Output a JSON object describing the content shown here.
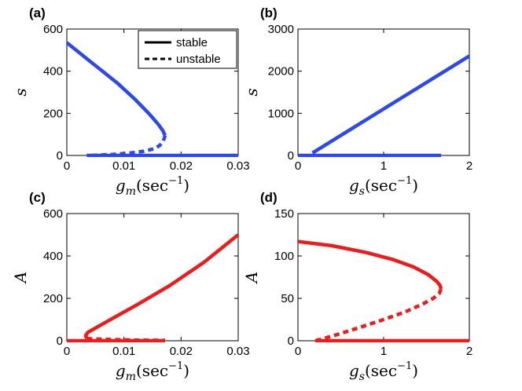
{
  "colors": {
    "blue": "#2e49ea",
    "red": "#ed1c1c"
  },
  "legend": {
    "stable": "stable",
    "unstable": "unstable"
  },
  "chart_data": [
    {
      "panel": "(a)",
      "type": "line",
      "xlabel": {
        "var": "g",
        "sub": "m",
        "unit": "(sec",
        "exp": "−1",
        "close": ")"
      },
      "ylabel": "s",
      "xlim": [
        0,
        0.03
      ],
      "ylim": [
        0,
        600
      ],
      "xticks": [
        0,
        0.01,
        0.02,
        0.03
      ],
      "xtick_labels": [
        "0",
        "0.01",
        "0.02",
        "0.03"
      ],
      "yticks": [
        0,
        200,
        400,
        600
      ],
      "ytick_labels": [
        "0",
        "200",
        "400",
        "600"
      ],
      "grid": false,
      "legend_position": "top-right",
      "series": [
        {
          "style": "stable",
          "color": "blue",
          "x": [
            0,
            0.003,
            0.006,
            0.009,
            0.012,
            0.0145,
            0.016,
            0.0168,
            0.0172
          ],
          "y": [
            535,
            470,
            405,
            340,
            265,
            195,
            148,
            118,
            95
          ]
        },
        {
          "style": "unstable",
          "color": "blue",
          "x": [
            0.0172,
            0.0169,
            0.0163,
            0.0153,
            0.0135,
            0.011,
            0.008,
            0.005,
            0.0035
          ],
          "y": [
            95,
            68,
            48,
            32,
            20,
            11,
            5,
            1,
            0
          ]
        },
        {
          "style": "stable",
          "color": "blue",
          "x": [
            0.0035,
            0.03
          ],
          "y": [
            0,
            0
          ]
        }
      ]
    },
    {
      "panel": "(b)",
      "type": "line",
      "xlabel": {
        "var": "g",
        "sub": "s",
        "unit": "(sec",
        "exp": "−1",
        "close": ")"
      },
      "ylabel": "s",
      "xlim": [
        0,
        2
      ],
      "ylim": [
        0,
        3000
      ],
      "xticks": [
        0,
        1,
        2
      ],
      "xtick_labels": [
        "0",
        "1",
        "2"
      ],
      "yticks": [
        0,
        1000,
        2000,
        3000
      ],
      "ytick_labels": [
        "0",
        "1000",
        "2000",
        "3000"
      ],
      "grid": false,
      "series": [
        {
          "style": "stable",
          "color": "blue",
          "x": [
            0,
            1.67
          ],
          "y": [
            0,
            0
          ]
        },
        {
          "style": "stable",
          "color": "blue",
          "x": [
            0.17,
            2.0
          ],
          "y": [
            60,
            2360
          ]
        }
      ]
    },
    {
      "panel": "(c)",
      "type": "line",
      "xlabel": {
        "var": "g",
        "sub": "m",
        "unit": "(sec",
        "exp": "−1",
        "close": ")"
      },
      "ylabel": "A",
      "xlim": [
        0,
        0.03
      ],
      "ylim": [
        0,
        600
      ],
      "xticks": [
        0,
        0.01,
        0.02,
        0.03
      ],
      "xtick_labels": [
        "0",
        "0.01",
        "0.02",
        "0.03"
      ],
      "yticks": [
        0,
        200,
        400,
        600
      ],
      "ytick_labels": [
        "0",
        "200",
        "400",
        "600"
      ],
      "grid": false,
      "series": [
        {
          "style": "stable",
          "color": "red",
          "x": [
            0,
            0.0035
          ],
          "y": [
            0,
            0
          ]
        },
        {
          "style": "stable",
          "color": "red",
          "x": [
            0.0035,
            0.0033,
            0.0037,
            0.0045,
            0.006,
            0.008,
            0.012,
            0.018,
            0.024,
            0.03
          ],
          "y": [
            10,
            25,
            40,
            52,
            75,
            105,
            165,
            260,
            370,
            500
          ]
        },
        {
          "style": "unstable",
          "color": "red",
          "x": [
            0.0035,
            0.005,
            0.008,
            0.012,
            0.0172
          ],
          "y": [
            10,
            8,
            5,
            3,
            2
          ]
        },
        {
          "style": "stable",
          "color": "red",
          "x": [
            0.0035,
            0.0172
          ],
          "y": [
            0,
            0
          ]
        }
      ]
    },
    {
      "panel": "(d)",
      "type": "line",
      "xlabel": {
        "var": "g",
        "sub": "s",
        "unit": "(sec",
        "exp": "−1",
        "close": ")"
      },
      "ylabel": "A",
      "xlim": [
        0,
        2
      ],
      "ylim": [
        0,
        150
      ],
      "xticks": [
        0,
        1,
        2
      ],
      "xtick_labels": [
        "0",
        "1",
        "2"
      ],
      "yticks": [
        0,
        50,
        100,
        150
      ],
      "ytick_labels": [
        "0",
        "50",
        "100",
        "150"
      ],
      "grid": false,
      "series": [
        {
          "style": "stable",
          "color": "red",
          "x": [
            0,
            0.4,
            0.8,
            1.1,
            1.35,
            1.52,
            1.62,
            1.66,
            1.67
          ],
          "y": [
            117,
            112,
            104,
            96,
            87,
            78,
            70,
            65,
            61
          ]
        },
        {
          "style": "unstable",
          "color": "red",
          "x": [
            1.67,
            1.65,
            1.58,
            1.45,
            1.25,
            1.0,
            0.7,
            0.45,
            0.28,
            0.2
          ],
          "y": [
            61,
            56,
            50,
            43,
            34,
            25,
            15,
            7,
            2,
            0
          ]
        },
        {
          "style": "stable",
          "color": "red",
          "x": [
            0.2,
            2.0
          ],
          "y": [
            0,
            0
          ]
        }
      ]
    }
  ]
}
